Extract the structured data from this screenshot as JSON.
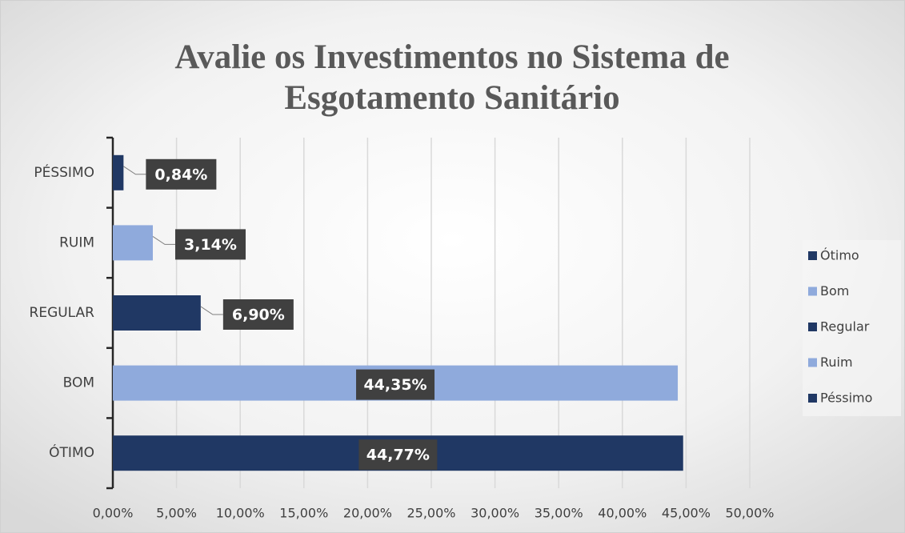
{
  "chart_data": {
    "type": "bar",
    "orientation": "horizontal",
    "title": [
      "Avalie os Investimentos no Sistema de",
      "Esgotamento Sanitário"
    ],
    "categories": [
      "PÉSSIMO",
      "RUIM",
      "REGULAR",
      "BOM",
      "ÓTIMO"
    ],
    "values": [
      0.84,
      3.14,
      6.9,
      44.35,
      44.77
    ],
    "value_labels": [
      "0,84%",
      "3,14%",
      "6,90%",
      "44,35%",
      "44,77%"
    ],
    "colors": [
      "#203864",
      "#8faadc",
      "#203864",
      "#8faadc",
      "#203864"
    ],
    "xlim": [
      0,
      50
    ],
    "xticks": [
      {
        "value": 0,
        "label": "0,00%"
      },
      {
        "value": 5,
        "label": "5,00%"
      },
      {
        "value": 10,
        "label": "10,00%"
      },
      {
        "value": 15,
        "label": "15,00%"
      },
      {
        "value": 20,
        "label": "20,00%"
      },
      {
        "value": 25,
        "label": "25,00%"
      },
      {
        "value": 30,
        "label": "30,00%"
      },
      {
        "value": 35,
        "label": "35,00%"
      },
      {
        "value": 40,
        "label": "40,00%"
      },
      {
        "value": 45,
        "label": "45,00%"
      },
      {
        "value": 50,
        "label": "50,00%"
      }
    ],
    "grid": true,
    "legend": {
      "position": "right",
      "entries": [
        {
          "name": "Ótimo",
          "color": "#203864"
        },
        {
          "name": "Bom",
          "color": "#8faadc"
        },
        {
          "name": "Regular",
          "color": "#203864"
        },
        {
          "name": "Ruim",
          "color": "#8faadc"
        },
        {
          "name": "Péssimo",
          "color": "#203864"
        }
      ]
    }
  }
}
